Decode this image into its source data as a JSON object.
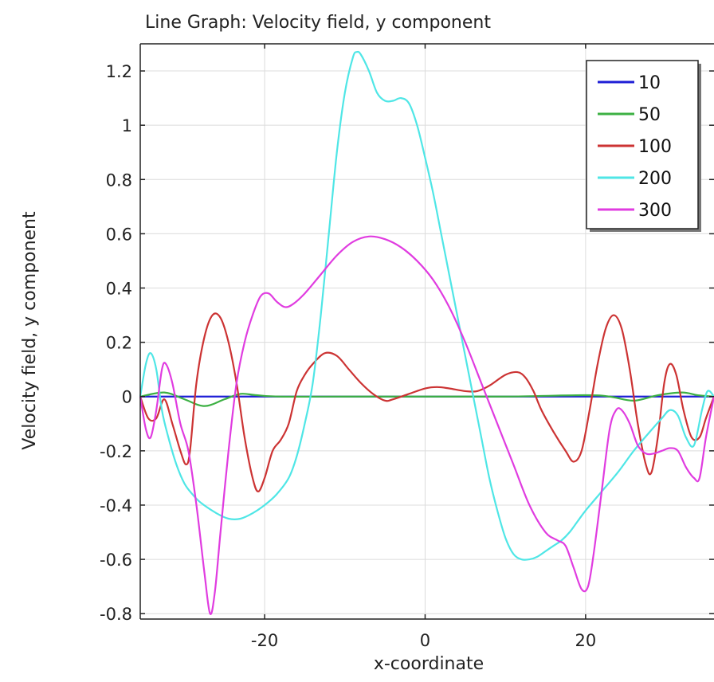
{
  "chart_data": {
    "type": "line",
    "title": "Line Graph: Velocity field, y component",
    "xlabel": "x-coordinate",
    "ylabel": "Velocity field, y component",
    "xlim": [
      -35.5,
      36
    ],
    "ylim": [
      -0.82,
      1.3
    ],
    "xticks": [
      -20,
      0,
      20
    ],
    "xtick_labels": [
      "-20",
      "0",
      "20"
    ],
    "yticks": [
      -0.8,
      -0.6,
      -0.4,
      -0.2,
      0,
      0.2,
      0.4,
      0.6,
      0.8,
      1,
      1.2
    ],
    "ytick_labels": [
      "-0.8",
      "-0.6",
      "-0.4",
      "-0.2",
      "0",
      "0.2",
      "0.4",
      "0.6",
      "0.8",
      "1",
      "1.2"
    ],
    "grid": true,
    "legend_position": "top-right",
    "series": [
      {
        "name": "10",
        "color": "#1f1fd6",
        "points": [
          [
            -35.5,
            0
          ],
          [
            -30,
            0
          ],
          [
            -20,
            0
          ],
          [
            -10,
            0
          ],
          [
            0,
            0
          ],
          [
            10,
            0
          ],
          [
            20,
            0
          ],
          [
            30,
            0
          ],
          [
            36,
            0
          ]
        ]
      },
      {
        "name": "50",
        "color": "#3cb043",
        "points": [
          [
            -35.5,
            0
          ],
          [
            -32.5,
            0.015
          ],
          [
            -30,
            -0.01
          ],
          [
            -27.5,
            -0.035
          ],
          [
            -25,
            -0.01
          ],
          [
            -23,
            0.01
          ],
          [
            -21,
            0.005
          ],
          [
            -18,
            0
          ],
          [
            -10,
            0
          ],
          [
            0,
            0
          ],
          [
            10,
            0
          ],
          [
            20,
            0.005
          ],
          [
            23,
            0
          ],
          [
            26,
            -0.015
          ],
          [
            29,
            0.005
          ],
          [
            32,
            0.015
          ],
          [
            34,
            0.005
          ],
          [
            36,
            0
          ]
        ]
      },
      {
        "name": "100",
        "color": "#cc3333",
        "points": [
          [
            -35.5,
            0
          ],
          [
            -34.5,
            -0.08
          ],
          [
            -33.5,
            -0.08
          ],
          [
            -32.5,
            -0.01
          ],
          [
            -31.5,
            -0.1
          ],
          [
            -30.5,
            -0.2
          ],
          [
            -29.8,
            -0.25
          ],
          [
            -29.3,
            -0.2
          ],
          [
            -28.5,
            0.05
          ],
          [
            -27.5,
            0.22
          ],
          [
            -26.5,
            0.3
          ],
          [
            -25.5,
            0.29
          ],
          [
            -24.5,
            0.2
          ],
          [
            -23.5,
            0.05
          ],
          [
            -22.5,
            -0.15
          ],
          [
            -21.5,
            -0.3
          ],
          [
            -20.8,
            -0.35
          ],
          [
            -20,
            -0.3
          ],
          [
            -19,
            -0.2
          ],
          [
            -18,
            -0.16
          ],
          [
            -17,
            -0.1
          ],
          [
            -16,
            0.02
          ],
          [
            -15,
            0.08
          ],
          [
            -14,
            0.12
          ],
          [
            -12.5,
            0.16
          ],
          [
            -11,
            0.15
          ],
          [
            -9.5,
            0.1
          ],
          [
            -8,
            0.05
          ],
          [
            -6.5,
            0.01
          ],
          [
            -5,
            -0.015
          ],
          [
            -4,
            -0.01
          ],
          [
            -2,
            0.01
          ],
          [
            0,
            0.03
          ],
          [
            1.5,
            0.035
          ],
          [
            3,
            0.03
          ],
          [
            5,
            0.02
          ],
          [
            6.5,
            0.02
          ],
          [
            8,
            0.04
          ],
          [
            10,
            0.08
          ],
          [
            11.5,
            0.09
          ],
          [
            12.5,
            0.07
          ],
          [
            13.5,
            0.02
          ],
          [
            14.5,
            -0.05
          ],
          [
            16,
            -0.13
          ],
          [
            17.5,
            -0.2
          ],
          [
            18.5,
            -0.24
          ],
          [
            19.5,
            -0.2
          ],
          [
            20.5,
            -0.05
          ],
          [
            21.5,
            0.12
          ],
          [
            22.5,
            0.25
          ],
          [
            23.5,
            0.3
          ],
          [
            24.5,
            0.25
          ],
          [
            25.5,
            0.1
          ],
          [
            26.5,
            -0.1
          ],
          [
            27.5,
            -0.25
          ],
          [
            28.2,
            -0.28
          ],
          [
            29,
            -0.15
          ],
          [
            29.8,
            0.05
          ],
          [
            30.5,
            0.12
          ],
          [
            31.3,
            0.08
          ],
          [
            32.2,
            -0.05
          ],
          [
            33.2,
            -0.15
          ],
          [
            34.2,
            -0.15
          ],
          [
            35,
            -0.08
          ],
          [
            36,
            0
          ]
        ]
      },
      {
        "name": "200",
        "color": "#4fe6e6",
        "points": [
          [
            -35.5,
            0
          ],
          [
            -34.8,
            0.12
          ],
          [
            -34.2,
            0.16
          ],
          [
            -33.5,
            0.1
          ],
          [
            -32.8,
            -0.05
          ],
          [
            -32,
            -0.15
          ],
          [
            -31,
            -0.25
          ],
          [
            -30,
            -0.32
          ],
          [
            -29,
            -0.36
          ],
          [
            -28,
            -0.39
          ],
          [
            -26,
            -0.43
          ],
          [
            -24.5,
            -0.45
          ],
          [
            -23,
            -0.45
          ],
          [
            -21.5,
            -0.43
          ],
          [
            -20,
            -0.4
          ],
          [
            -18.5,
            -0.36
          ],
          [
            -17,
            -0.3
          ],
          [
            -16,
            -0.22
          ],
          [
            -15,
            -0.1
          ],
          [
            -14,
            0.05
          ],
          [
            -13,
            0.3
          ],
          [
            -12,
            0.6
          ],
          [
            -11,
            0.9
          ],
          [
            -10,
            1.12
          ],
          [
            -9,
            1.25
          ],
          [
            -8.5,
            1.27
          ],
          [
            -8,
            1.26
          ],
          [
            -7,
            1.2
          ],
          [
            -6,
            1.12
          ],
          [
            -5,
            1.09
          ],
          [
            -4,
            1.09
          ],
          [
            -3,
            1.1
          ],
          [
            -2,
            1.08
          ],
          [
            -1,
            1.0
          ],
          [
            0,
            0.88
          ],
          [
            1,
            0.75
          ],
          [
            2,
            0.6
          ],
          [
            3,
            0.45
          ],
          [
            4,
            0.3
          ],
          [
            5,
            0.15
          ],
          [
            6,
            0
          ],
          [
            7,
            -0.15
          ],
          [
            8,
            -0.3
          ],
          [
            9,
            -0.42
          ],
          [
            10,
            -0.52
          ],
          [
            11,
            -0.58
          ],
          [
            12,
            -0.6
          ],
          [
            13,
            -0.6
          ],
          [
            14,
            -0.59
          ],
          [
            15,
            -0.57
          ],
          [
            16,
            -0.55
          ],
          [
            17,
            -0.53
          ],
          [
            18,
            -0.5
          ],
          [
            19,
            -0.46
          ],
          [
            20,
            -0.42
          ],
          [
            22,
            -0.35
          ],
          [
            24,
            -0.28
          ],
          [
            26,
            -0.2
          ],
          [
            28,
            -0.13
          ],
          [
            29.5,
            -0.08
          ],
          [
            30.5,
            -0.05
          ],
          [
            31.5,
            -0.07
          ],
          [
            32.5,
            -0.15
          ],
          [
            33.5,
            -0.18
          ],
          [
            34.5,
            -0.05
          ],
          [
            35.2,
            0.02
          ],
          [
            36,
            0
          ]
        ]
      },
      {
        "name": "300",
        "color": "#e03ce0",
        "points": [
          [
            -35.5,
            0
          ],
          [
            -34.8,
            -0.12
          ],
          [
            -34.2,
            -0.15
          ],
          [
            -33.5,
            -0.05
          ],
          [
            -32.8,
            0.1
          ],
          [
            -32.3,
            0.12
          ],
          [
            -31.5,
            0.05
          ],
          [
            -30.5,
            -0.1
          ],
          [
            -29.5,
            -0.2
          ],
          [
            -28.5,
            -0.4
          ],
          [
            -27.5,
            -0.65
          ],
          [
            -26.8,
            -0.8
          ],
          [
            -26.2,
            -0.72
          ],
          [
            -25.5,
            -0.5
          ],
          [
            -24.5,
            -0.2
          ],
          [
            -23.5,
            0.05
          ],
          [
            -22.5,
            0.2
          ],
          [
            -21.5,
            0.3
          ],
          [
            -20.5,
            0.37
          ],
          [
            -19.5,
            0.38
          ],
          [
            -18.5,
            0.35
          ],
          [
            -17.5,
            0.33
          ],
          [
            -16.5,
            0.34
          ],
          [
            -15,
            0.38
          ],
          [
            -13,
            0.45
          ],
          [
            -11,
            0.52
          ],
          [
            -9,
            0.57
          ],
          [
            -7,
            0.59
          ],
          [
            -5,
            0.58
          ],
          [
            -3,
            0.55
          ],
          [
            -1,
            0.5
          ],
          [
            1,
            0.43
          ],
          [
            3,
            0.33
          ],
          [
            5,
            0.2
          ],
          [
            7,
            0.05
          ],
          [
            9,
            -0.1
          ],
          [
            11,
            -0.25
          ],
          [
            13,
            -0.4
          ],
          [
            15,
            -0.5
          ],
          [
            16.5,
            -0.53
          ],
          [
            17.5,
            -0.55
          ],
          [
            18.5,
            -0.63
          ],
          [
            19.5,
            -0.71
          ],
          [
            20.3,
            -0.7
          ],
          [
            21,
            -0.58
          ],
          [
            22,
            -0.35
          ],
          [
            23,
            -0.12
          ],
          [
            23.8,
            -0.05
          ],
          [
            24.5,
            -0.05
          ],
          [
            25.5,
            -0.1
          ],
          [
            26.5,
            -0.18
          ],
          [
            27.5,
            -0.21
          ],
          [
            28.5,
            -0.21
          ],
          [
            29.5,
            -0.2
          ],
          [
            30.5,
            -0.19
          ],
          [
            31.5,
            -0.2
          ],
          [
            32.5,
            -0.26
          ],
          [
            33.5,
            -0.3
          ],
          [
            34.2,
            -0.3
          ],
          [
            35,
            -0.15
          ],
          [
            36,
            0
          ]
        ]
      }
    ]
  }
}
